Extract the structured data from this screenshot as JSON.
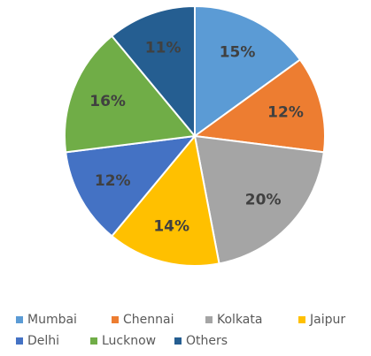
{
  "chart_data": {
    "type": "pie",
    "categories": [
      "Mumbai",
      "Chennai",
      "Kolkata",
      "Jaipur",
      "Delhi",
      "Lucknow",
      "Others"
    ],
    "values": [
      15,
      12,
      20,
      14,
      12,
      16,
      11
    ],
    "value_labels": [
      "15%",
      "12%",
      "20%",
      "14%",
      "12%",
      "16%",
      "11%"
    ],
    "colors": [
      "#5b9bd5",
      "#ed7d31",
      "#a5a5a5",
      "#ffc000",
      "#4472c4",
      "#70ad47",
      "#255e91"
    ],
    "legend": "bottom"
  }
}
